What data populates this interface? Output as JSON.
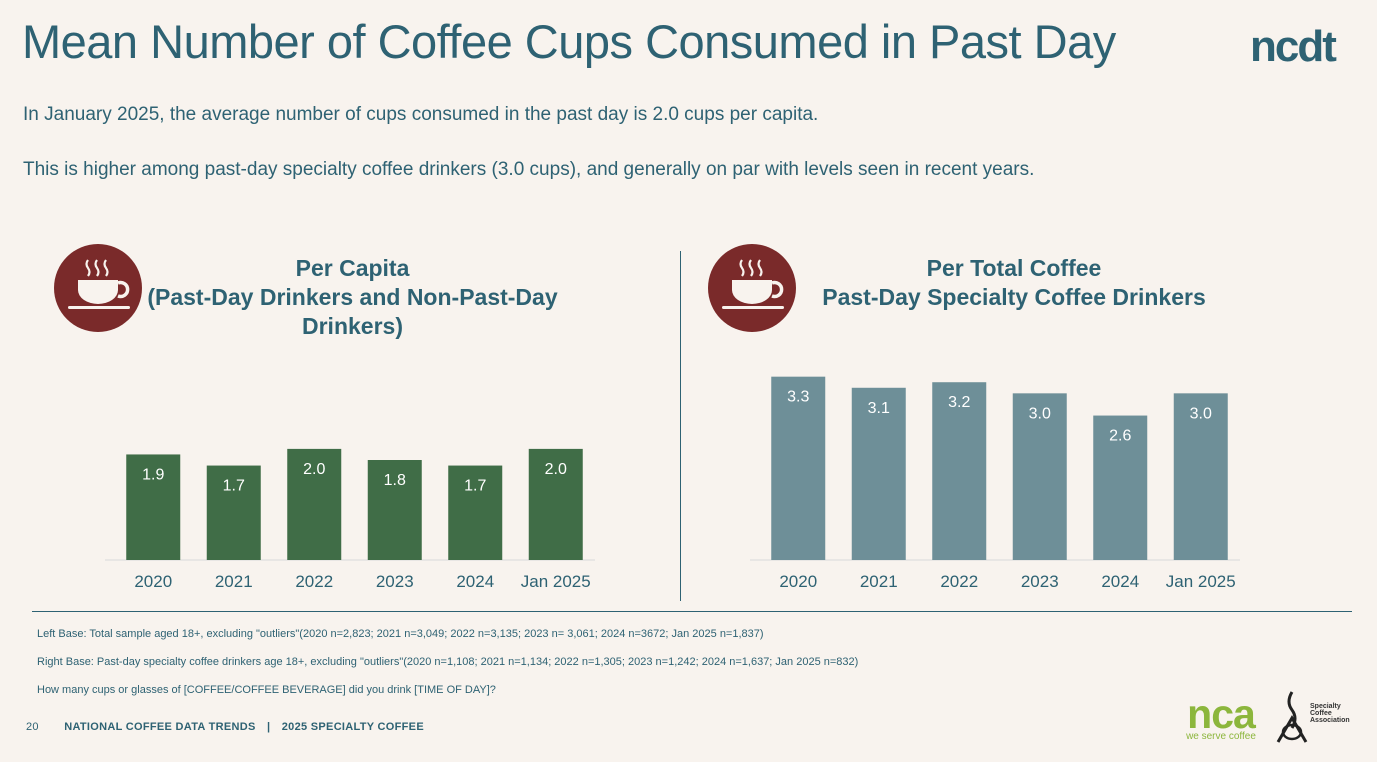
{
  "header": {
    "title": "Mean Number of Coffee Cups Consumed in Past Day",
    "brand": "ncdt"
  },
  "description": {
    "line1": "In January 2025, the average number of cups consumed in the past day is 2.0 cups per capita.",
    "line2": "This is higher among past-day specialty coffee drinkers (3.0 cups), and generally on par with levels seen in recent years."
  },
  "panels": {
    "left": {
      "title_lines": [
        "Per Capita",
        "(Past-Day Drinkers and Non-Past-Day",
        "Drinkers)"
      ],
      "icon": "coffee-cup-icon"
    },
    "right": {
      "title_lines": [
        "Per Total Coffee",
        "Past-Day Specialty Coffee Drinkers"
      ],
      "icon": "coffee-cup-icon"
    }
  },
  "chart_data": [
    {
      "type": "bar",
      "categories": [
        "2020",
        "2021",
        "2022",
        "2023",
        "2024",
        "Jan 2025"
      ],
      "values": [
        1.9,
        1.7,
        2.0,
        1.8,
        1.7,
        2.0
      ],
      "labels": [
        "1.9",
        "1.7",
        "2.0",
        "1.8",
        "1.7",
        "2.0"
      ],
      "title": "Per Capita (Past-Day Drinkers and Non-Past-Day Drinkers)",
      "color": "#406d47",
      "ylim": [
        0,
        3.6
      ]
    },
    {
      "type": "bar",
      "categories": [
        "2020",
        "2021",
        "2022",
        "2023",
        "2024",
        "Jan 2025"
      ],
      "values": [
        3.3,
        3.1,
        3.2,
        3.0,
        2.6,
        3.0
      ],
      "labels": [
        "3.3",
        "3.1",
        "3.2",
        "3.0",
        "2.6",
        "3.0"
      ],
      "title": "Per Total Coffee Past-Day Specialty Coffee Drinkers",
      "color": "#6e8f98",
      "ylim": [
        0,
        3.6
      ]
    }
  ],
  "notes": {
    "left_base": "Left Base: Total sample aged 18+, excluding \"outliers\"(2020 n=2,823; 2021 n=3,049; 2022 n=3,135; 2023 n= 3,061; 2024 n=3672; Jan 2025 n=1,837)",
    "right_base": "Right Base: Past-day specialty coffee drinkers age 18+, excluding \"outliers\"(2020 n=1,108; 2021 n=1,134; 2022 n=1,305; 2023 n=1,242; 2024 n=1,637; Jan 2025 n=832)",
    "question": "How many cups or glasses of [COFFEE/COFFEE BEVERAGE] did you drink [TIME OF DAY]?"
  },
  "footer": {
    "page_number": "20",
    "left_text": "NATIONAL COFFEE DATA TRENDS",
    "separator": "|",
    "right_text": "2025 SPECIALTY COFFEE"
  },
  "logos": {
    "nca_text": "nca",
    "nca_tagline": "we serve coffee",
    "sca_lines": [
      "Specialty",
      "Coffee",
      "Association"
    ]
  },
  "colors": {
    "accent": "#2e6273",
    "icon_circle": "#7a2a2a",
    "left_bars": "#406d47",
    "right_bars": "#6e8f98",
    "nca_green": "#8cb63c"
  }
}
